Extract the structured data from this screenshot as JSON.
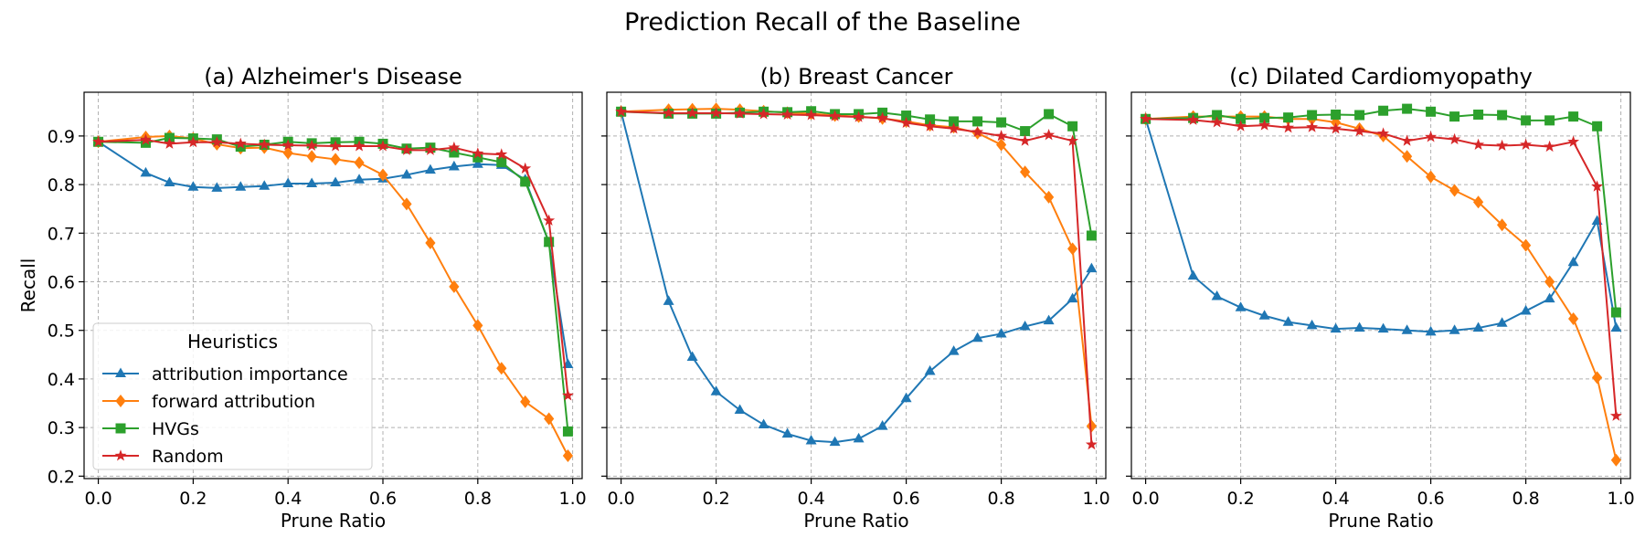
{
  "figure": {
    "title": "Prediction Recall of the Baseline"
  },
  "chart_data": [
    {
      "type": "line",
      "title": "(a) Alzheimer's Disease",
      "xlabel": "Prune Ratio",
      "ylabel": "Recall",
      "xlim": [
        -0.03,
        1.02
      ],
      "ylim": [
        0.195,
        0.99
      ],
      "xticks": [
        "0.0",
        "0.2",
        "0.4",
        "0.6",
        "0.8",
        "1.0"
      ],
      "yticks": [
        "0.2",
        "0.3",
        "0.4",
        "0.5",
        "0.6",
        "0.7",
        "0.8",
        "0.9"
      ],
      "grid": true,
      "legend": {
        "placement": "lower-left",
        "title": "Heuristics",
        "entries": [
          "attribution importance",
          "forward attribution",
          "HVGs",
          "Random"
        ]
      },
      "x": [
        0.0,
        0.1,
        0.15,
        0.2,
        0.25,
        0.3,
        0.35,
        0.4,
        0.45,
        0.5,
        0.55,
        0.6,
        0.65,
        0.7,
        0.75,
        0.8,
        0.85,
        0.9,
        0.95,
        0.99
      ],
      "series": [
        {
          "name": "attribution importance",
          "color": "#1f77b4",
          "marker": "triangle",
          "values": [
            0.888,
            0.824,
            0.804,
            0.795,
            0.793,
            0.795,
            0.797,
            0.802,
            0.802,
            0.804,
            0.81,
            0.812,
            0.82,
            0.83,
            0.837,
            0.842,
            0.84,
            0.81,
            0.68,
            0.43
          ]
        },
        {
          "name": "forward attribution",
          "color": "#ff7f0e",
          "marker": "diamond",
          "values": [
            0.888,
            0.898,
            0.9,
            0.895,
            0.883,
            0.875,
            0.876,
            0.865,
            0.858,
            0.852,
            0.845,
            0.82,
            0.76,
            0.68,
            0.59,
            0.51,
            0.422,
            0.353,
            0.318,
            0.242
          ]
        },
        {
          "name": "HVGs",
          "color": "#2ca02c",
          "marker": "square",
          "values": [
            0.888,
            0.886,
            0.896,
            0.895,
            0.893,
            0.878,
            0.882,
            0.888,
            0.885,
            0.887,
            0.888,
            0.884,
            0.874,
            0.876,
            0.866,
            0.856,
            0.846,
            0.806,
            0.682,
            0.292
          ]
        },
        {
          "name": "Random",
          "color": "#d62728",
          "marker": "star",
          "values": [
            0.888,
            0.892,
            0.884,
            0.887,
            0.887,
            0.884,
            0.882,
            0.881,
            0.88,
            0.879,
            0.879,
            0.879,
            0.871,
            0.871,
            0.876,
            0.864,
            0.862,
            0.833,
            0.726,
            0.366
          ]
        }
      ]
    },
    {
      "type": "line",
      "title": "(b) Breast Cancer",
      "xlabel": "Prune Ratio",
      "ylabel": "",
      "xlim": [
        -0.03,
        1.02
      ],
      "ylim": [
        0.195,
        0.99
      ],
      "xticks": [
        "0.0",
        "0.2",
        "0.4",
        "0.6",
        "0.8",
        "1.0"
      ],
      "yticks": [],
      "grid": true,
      "x": [
        0.0,
        0.1,
        0.15,
        0.2,
        0.25,
        0.3,
        0.35,
        0.4,
        0.45,
        0.5,
        0.55,
        0.6,
        0.65,
        0.7,
        0.75,
        0.8,
        0.85,
        0.9,
        0.95,
        0.99
      ],
      "series": [
        {
          "name": "attribution importance",
          "color": "#1f77b4",
          "marker": "triangle",
          "values": [
            0.95,
            0.56,
            0.445,
            0.374,
            0.336,
            0.306,
            0.287,
            0.273,
            0.27,
            0.277,
            0.303,
            0.36,
            0.416,
            0.457,
            0.484,
            0.493,
            0.508,
            0.52,
            0.565,
            0.627
          ]
        },
        {
          "name": "forward attribution",
          "color": "#ff7f0e",
          "marker": "diamond",
          "values": [
            0.95,
            0.954,
            0.955,
            0.956,
            0.954,
            0.951,
            0.948,
            0.946,
            0.942,
            0.94,
            0.936,
            0.93,
            0.922,
            0.918,
            0.906,
            0.882,
            0.826,
            0.774,
            0.668,
            0.303
          ]
        },
        {
          "name": "HVGs",
          "color": "#2ca02c",
          "marker": "square",
          "values": [
            0.95,
            0.946,
            0.946,
            0.946,
            0.948,
            0.95,
            0.949,
            0.951,
            0.945,
            0.945,
            0.948,
            0.942,
            0.934,
            0.93,
            0.93,
            0.928,
            0.91,
            0.945,
            0.92,
            0.695
          ]
        },
        {
          "name": "Random",
          "color": "#d62728",
          "marker": "star",
          "values": [
            0.95,
            0.947,
            0.947,
            0.947,
            0.946,
            0.945,
            0.944,
            0.943,
            0.941,
            0.939,
            0.937,
            0.927,
            0.92,
            0.915,
            0.908,
            0.9,
            0.89,
            0.902,
            0.89,
            0.265
          ]
        }
      ]
    },
    {
      "type": "line",
      "title": "(c) Dilated Cardiomyopathy",
      "xlabel": "Prune Ratio",
      "ylabel": "",
      "xlim": [
        -0.03,
        1.02
      ],
      "ylim": [
        0.195,
        0.99
      ],
      "xticks": [
        "0.0",
        "0.2",
        "0.4",
        "0.6",
        "0.8",
        "1.0"
      ],
      "yticks": [],
      "grid": true,
      "x": [
        0.0,
        0.1,
        0.15,
        0.2,
        0.25,
        0.3,
        0.35,
        0.4,
        0.45,
        0.5,
        0.55,
        0.6,
        0.65,
        0.7,
        0.75,
        0.8,
        0.85,
        0.9,
        0.95,
        0.99
      ],
      "series": [
        {
          "name": "attribution importance",
          "color": "#1f77b4",
          "marker": "triangle",
          "values": [
            0.935,
            0.612,
            0.57,
            0.547,
            0.53,
            0.517,
            0.51,
            0.503,
            0.505,
            0.503,
            0.5,
            0.497,
            0.5,
            0.505,
            0.515,
            0.54,
            0.565,
            0.64,
            0.725,
            0.505
          ]
        },
        {
          "name": "forward attribution",
          "color": "#ff7f0e",
          "marker": "diamond",
          "values": [
            0.935,
            0.94,
            0.94,
            0.94,
            0.94,
            0.935,
            0.935,
            0.928,
            0.915,
            0.9,
            0.858,
            0.816,
            0.788,
            0.764,
            0.717,
            0.675,
            0.6,
            0.524,
            0.403,
            0.233
          ]
        },
        {
          "name": "HVGs",
          "color": "#2ca02c",
          "marker": "square",
          "values": [
            0.935,
            0.937,
            0.943,
            0.935,
            0.937,
            0.938,
            0.943,
            0.944,
            0.943,
            0.952,
            0.956,
            0.95,
            0.94,
            0.944,
            0.943,
            0.932,
            0.932,
            0.94,
            0.92,
            0.537
          ]
        },
        {
          "name": "Random",
          "color": "#d62728",
          "marker": "star",
          "values": [
            0.935,
            0.933,
            0.928,
            0.92,
            0.922,
            0.917,
            0.918,
            0.915,
            0.91,
            0.905,
            0.89,
            0.898,
            0.893,
            0.882,
            0.88,
            0.882,
            0.878,
            0.888,
            0.796,
            0.324
          ]
        }
      ]
    }
  ]
}
